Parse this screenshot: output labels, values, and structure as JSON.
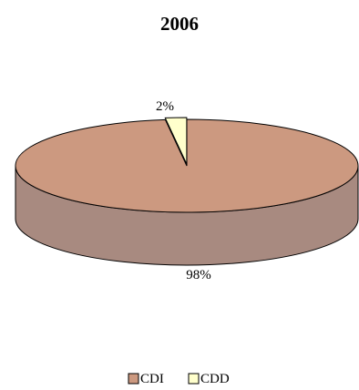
{
  "chart_data": {
    "type": "pie",
    "title": "2006",
    "style": "3d-exploded-tilted",
    "slices": [
      {
        "label": "CDI",
        "value": 98,
        "value_label": "98%",
        "color": "#CC9980",
        "side_color": "#A88A80"
      },
      {
        "label": "CDD",
        "value": 2,
        "value_label": "2%",
        "color": "#FFFFCC",
        "side_color": "#E6E6B8"
      }
    ],
    "legend": {
      "position": "bottom",
      "items": [
        {
          "label": "CDI",
          "color": "#CC9980"
        },
        {
          "label": "CDD",
          "color": "#FFFFCC"
        }
      ]
    }
  }
}
